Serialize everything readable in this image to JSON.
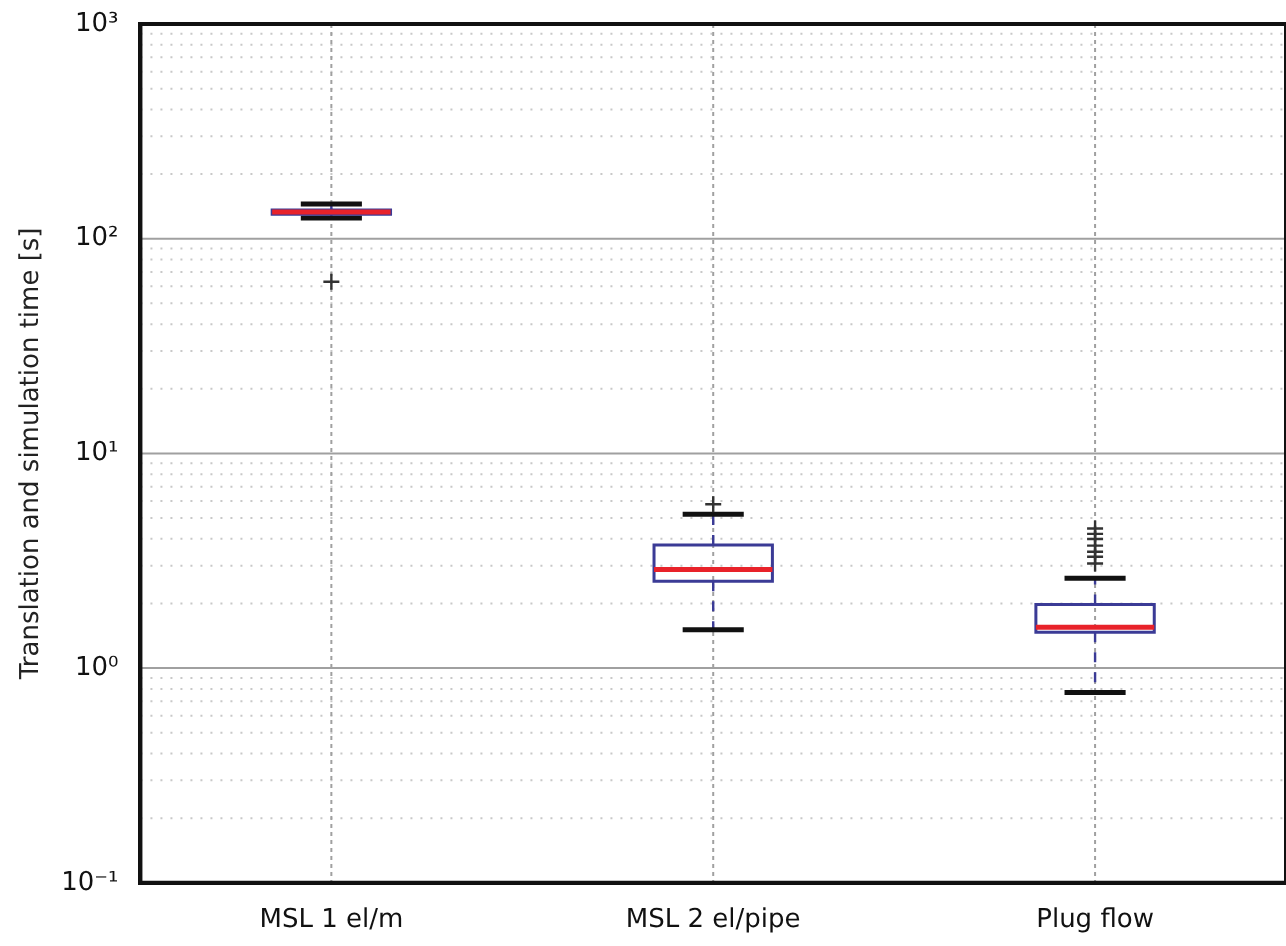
{
  "chart_data": {
    "type": "box",
    "ylabel": "Translation and simulation time [s]",
    "categories": [
      "MSL 1 el/m",
      "MSL 2 el/pipe",
      "Plug flow"
    ],
    "log": "y",
    "grid": true,
    "marker": "cross",
    "ylim": [
      0.1,
      1000
    ],
    "yticks": [
      {
        "value": 0.1,
        "label": "10⁻¹"
      },
      {
        "value": 0.2,
        "label": null
      },
      {
        "value": 0.3,
        "label": null
      },
      {
        "value": 0.4,
        "label": null
      },
      {
        "value": 0.5,
        "label": null
      },
      {
        "value": 0.6,
        "label": null
      },
      {
        "value": 0.7,
        "label": null
      },
      {
        "value": 0.8,
        "label": null
      },
      {
        "value": 0.9,
        "label": null
      },
      {
        "value": 1,
        "label": "10⁰"
      },
      {
        "value": 2,
        "label": null
      },
      {
        "value": 3,
        "label": null
      },
      {
        "value": 4,
        "label": null
      },
      {
        "value": 5,
        "label": null
      },
      {
        "value": 6,
        "label": null
      },
      {
        "value": 7,
        "label": null
      },
      {
        "value": 8,
        "label": null
      },
      {
        "value": 9,
        "label": null
      },
      {
        "value": 10,
        "label": "10¹"
      },
      {
        "value": 20,
        "label": null
      },
      {
        "value": 30,
        "label": null
      },
      {
        "value": 40,
        "label": null
      },
      {
        "value": 50,
        "label": null
      },
      {
        "value": 60,
        "label": null
      },
      {
        "value": 70,
        "label": null
      },
      {
        "value": 80,
        "label": null
      },
      {
        "value": 90,
        "label": null
      },
      {
        "value": 100,
        "label": "10²"
      },
      {
        "value": 200,
        "label": null
      },
      {
        "value": 300,
        "label": null
      },
      {
        "value": 400,
        "label": null
      },
      {
        "value": 500,
        "label": null
      },
      {
        "value": 600,
        "label": null
      },
      {
        "value": 700,
        "label": null
      },
      {
        "value": 800,
        "label": null
      },
      {
        "value": 900,
        "label": null
      },
      {
        "value": 1000,
        "label": "10³"
      }
    ],
    "series": [
      {
        "color": "#3b3b96",
        "boxes": [
          {
            "low": 125,
            "q1": 130,
            "median": 133,
            "q3": 136,
            "high": 145,
            "outliers": [
              63
            ]
          },
          {
            "low": 1.51,
            "q1": 2.54,
            "median": 2.88,
            "q3": 3.74,
            "high": 5.2,
            "outliers": [
              5.8
            ]
          },
          {
            "low": 0.77,
            "q1": 1.47,
            "median": 1.55,
            "q3": 1.98,
            "high": 2.62,
            "outliers": [
              3.07,
              3.3,
              3.48,
              3.72,
              3.99,
              4.22,
              4.47
            ]
          }
        ]
      }
    ]
  }
}
